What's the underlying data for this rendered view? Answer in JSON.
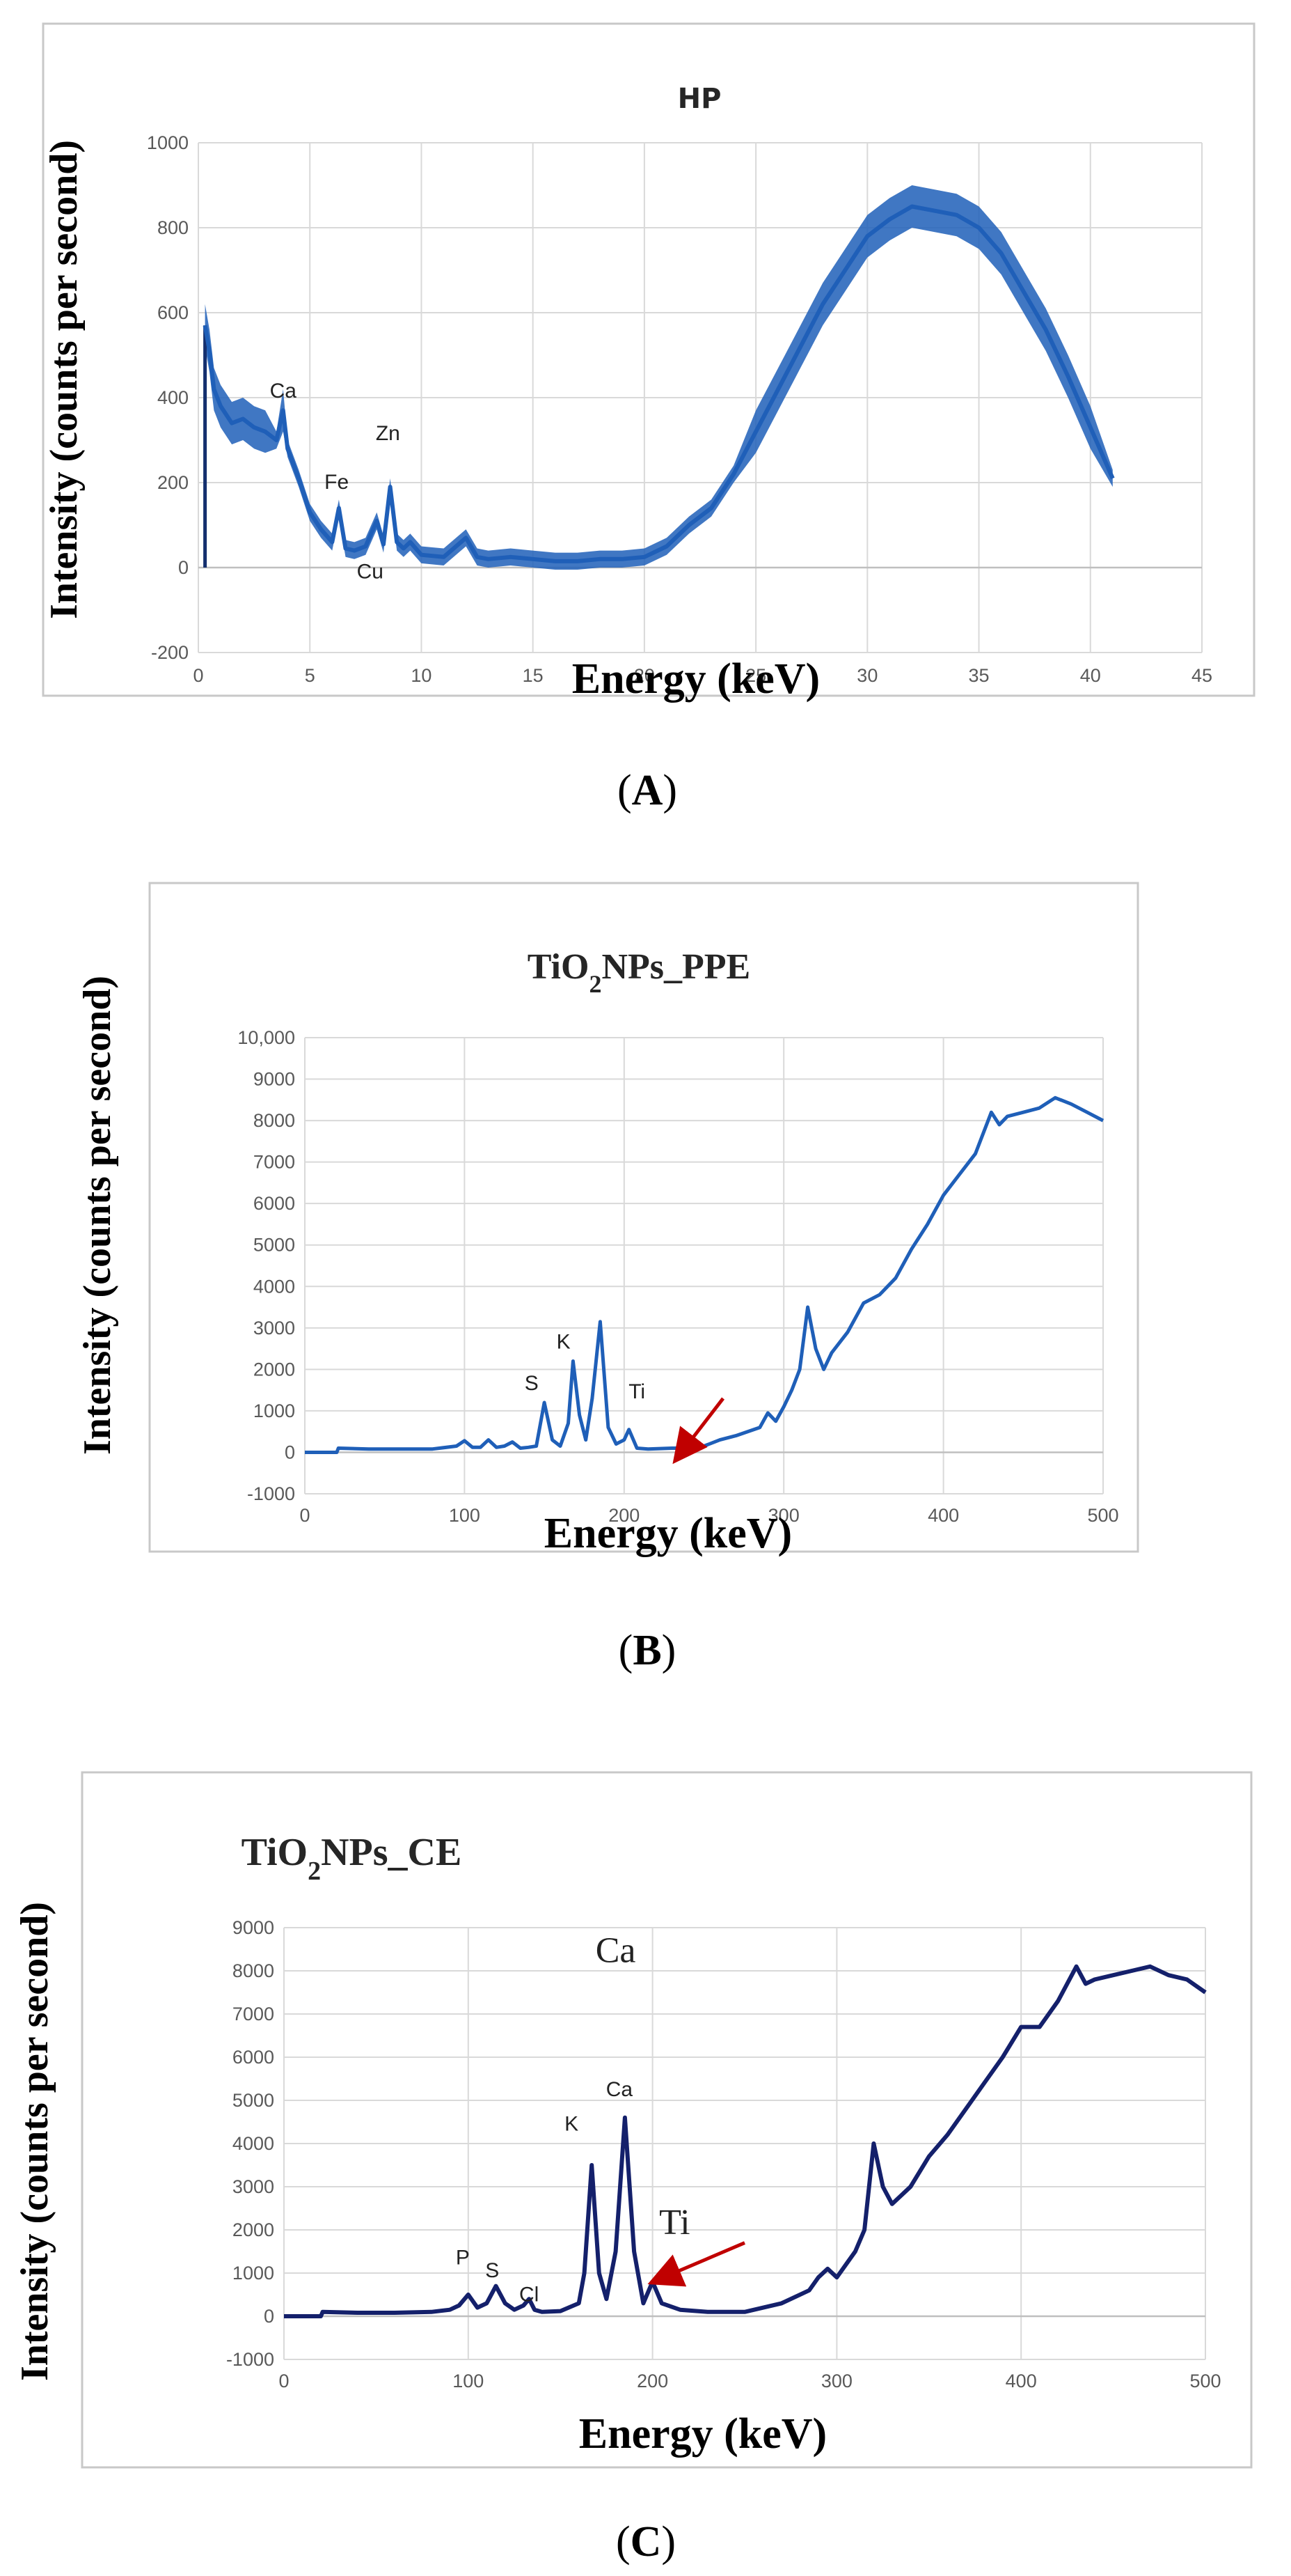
{
  "chart_data": [
    {
      "id": "A",
      "type": "line",
      "title": "HP",
      "xlabel": "Energy (keV)",
      "ylabel": "Intensity (counts per second)",
      "xlim": [
        0,
        45
      ],
      "ylim": [
        -200,
        1000
      ],
      "xticks": [
        0,
        5,
        10,
        15,
        20,
        25,
        30,
        35,
        40,
        45
      ],
      "yticks": [
        -200,
        0,
        200,
        400,
        600,
        800,
        1000
      ],
      "ytick_labels": [
        "-200",
        "0",
        "200",
        "400",
        "600",
        "800",
        "1000"
      ],
      "line_color": "#1f5fb8",
      "x": [
        0.3,
        0.5,
        0.7,
        1,
        1.5,
        2,
        2.5,
        3,
        3.5,
        3.8,
        4,
        4.5,
        5,
        5.5,
        6,
        6.3,
        6.6,
        7,
        7.5,
        8,
        8.3,
        8.6,
        8.9,
        9.2,
        9.5,
        10,
        11,
        12,
        12.5,
        13,
        14,
        15,
        16,
        17,
        18,
        19,
        20,
        21,
        22,
        23,
        24,
        25,
        26,
        27,
        28,
        29,
        30,
        31,
        32,
        33,
        34,
        35,
        36,
        37,
        38,
        39,
        40,
        41
      ],
      "y": [
        570,
        510,
        420,
        380,
        340,
        350,
        330,
        320,
        300,
        370,
        280,
        210,
        130,
        90,
        60,
        140,
        45,
        40,
        50,
        110,
        55,
        190,
        60,
        45,
        60,
        30,
        25,
        70,
        25,
        20,
        25,
        20,
        15,
        15,
        20,
        20,
        25,
        50,
        100,
        140,
        220,
        320,
        420,
        520,
        620,
        700,
        780,
        820,
        850,
        840,
        830,
        800,
        740,
        650,
        560,
        450,
        330,
        210
      ],
      "band": 50,
      "annotations": [
        {
          "text": "Ca",
          "x": 3.8,
          "y": 400
        },
        {
          "text": "Fe",
          "x": 6.2,
          "y": 185
        },
        {
          "text": "Zn",
          "x": 8.5,
          "y": 300
        },
        {
          "text": "Cu",
          "x": 7.7,
          "y": -25
        }
      ]
    },
    {
      "id": "B",
      "type": "line",
      "title": "TiO2NPs_PPE",
      "title_main": "TiO",
      "title_sub": "2",
      "title_rest": "NPs_PPE",
      "xlabel": "Energy (keV)",
      "ylabel": "Intensity (counts per second)",
      "xlim": [
        0,
        500
      ],
      "ylim": [
        -1000,
        10000
      ],
      "xticks": [
        0,
        100,
        200,
        300,
        400,
        500
      ],
      "yticks": [
        -1000,
        0,
        1000,
        2000,
        3000,
        4000,
        5000,
        6000,
        7000,
        8000,
        9000,
        10000
      ],
      "ytick_labels": [
        "-1000",
        "0",
        "1000",
        "2000",
        "3000",
        "4000",
        "5000",
        "6000",
        "7000",
        "8000",
        "9000",
        "10,000"
      ],
      "line_color": "#1f5fb8",
      "x": [
        0,
        20,
        21,
        40,
        60,
        80,
        95,
        100,
        105,
        110,
        115,
        120,
        125,
        130,
        135,
        140,
        145,
        150,
        155,
        160,
        165,
        168,
        172,
        176,
        180,
        185,
        190,
        195,
        200,
        203,
        208,
        215,
        230,
        240,
        250,
        260,
        270,
        285,
        290,
        295,
        300,
        305,
        310,
        315,
        320,
        325,
        330,
        340,
        350,
        360,
        370,
        380,
        390,
        400,
        410,
        420,
        430,
        435,
        440,
        450,
        460,
        470,
        480,
        490,
        500
      ],
      "y": [
        0,
        0,
        100,
        80,
        80,
        80,
        150,
        280,
        120,
        120,
        300,
        120,
        150,
        250,
        100,
        120,
        150,
        1200,
        300,
        150,
        700,
        2200,
        900,
        300,
        1300,
        3150,
        600,
        200,
        300,
        550,
        100,
        80,
        100,
        100,
        150,
        300,
        400,
        600,
        950,
        750,
        1100,
        1500,
        2000,
        3500,
        2500,
        2000,
        2400,
        2900,
        3600,
        3800,
        4200,
        4900,
        5500,
        6200,
        6700,
        7200,
        8200,
        7900,
        8100,
        8200,
        8300,
        8550,
        8400,
        8200,
        8000
      ],
      "annotations": [
        {
          "text": "S",
          "x": 142,
          "y": 1500
        },
        {
          "text": "K",
          "x": 162,
          "y": 2500
        },
        {
          "text": "Ti",
          "x": 208,
          "y": 1300
        }
      ],
      "arrow": {
        "from": [
          262,
          1300
        ],
        "to": [
          237,
          50
        ],
        "color": "#c00000"
      }
    },
    {
      "id": "C",
      "type": "line",
      "title": "TiO2NPs_CE",
      "title_main": "TiO",
      "title_sub": "2",
      "title_rest": "NPs_CE",
      "xlabel": "Energy (keV)",
      "ylabel": "Intensity (counts per second)",
      "xlim": [
        0,
        500
      ],
      "ylim": [
        -1000,
        9000
      ],
      "xticks": [
        0,
        100,
        200,
        300,
        400,
        500
      ],
      "yticks": [
        -1000,
        0,
        1000,
        2000,
        3000,
        4000,
        5000,
        6000,
        7000,
        8000,
        9000
      ],
      "ytick_labels": [
        "-1000",
        "0",
        "1000",
        "2000",
        "3000",
        "4000",
        "5000",
        "6000",
        "7000",
        "8000",
        "9000"
      ],
      "line_color": "#14206b",
      "x": [
        0,
        20,
        21,
        40,
        60,
        80,
        90,
        95,
        100,
        105,
        110,
        115,
        120,
        125,
        130,
        133,
        136,
        140,
        150,
        160,
        163,
        167,
        171,
        175,
        180,
        185,
        190,
        195,
        200,
        205,
        215,
        230,
        250,
        270,
        285,
        290,
        295,
        300,
        305,
        310,
        315,
        320,
        325,
        330,
        340,
        350,
        360,
        370,
        380,
        390,
        400,
        410,
        420,
        430,
        435,
        440,
        450,
        460,
        470,
        480,
        490,
        500
      ],
      "y": [
        0,
        0,
        100,
        80,
        80,
        100,
        150,
        250,
        500,
        200,
        300,
        700,
        300,
        150,
        250,
        400,
        150,
        100,
        120,
        300,
        1000,
        3500,
        1000,
        400,
        1500,
        4600,
        1500,
        300,
        800,
        300,
        150,
        100,
        100,
        300,
        600,
        900,
        1100,
        900,
        1200,
        1500,
        2000,
        4000,
        3000,
        2600,
        3000,
        3700,
        4200,
        4800,
        5400,
        6000,
        6700,
        6700,
        7300,
        8100,
        7700,
        7800,
        7900,
        8000,
        8100,
        7900,
        7800,
        7500
      ],
      "annotations": [
        {
          "text": "Ca",
          "x": 180,
          "y": 8200,
          "style": "serif-large"
        },
        {
          "text": "P",
          "x": 97,
          "y": 1200
        },
        {
          "text": "S",
          "x": 113,
          "y": 900
        },
        {
          "text": "Cl",
          "x": 133,
          "y": 350
        },
        {
          "text": "K",
          "x": 156,
          "y": 4300
        },
        {
          "text": "Ca",
          "x": 182,
          "y": 5100
        },
        {
          "text": "Ti",
          "x": 212,
          "y": 1900,
          "style": "serif-large"
        }
      ],
      "arrow": {
        "from": [
          250,
          1700
        ],
        "to": [
          206,
          900
        ],
        "color": "#c00000"
      }
    }
  ],
  "panel_labels": {
    "a_open": "(",
    "a": "A",
    "a_close": ")",
    "b_open": "(",
    "b": "B",
    "b_close": ")",
    "c_open": "(",
    "c": "C",
    "c_close": ")"
  }
}
